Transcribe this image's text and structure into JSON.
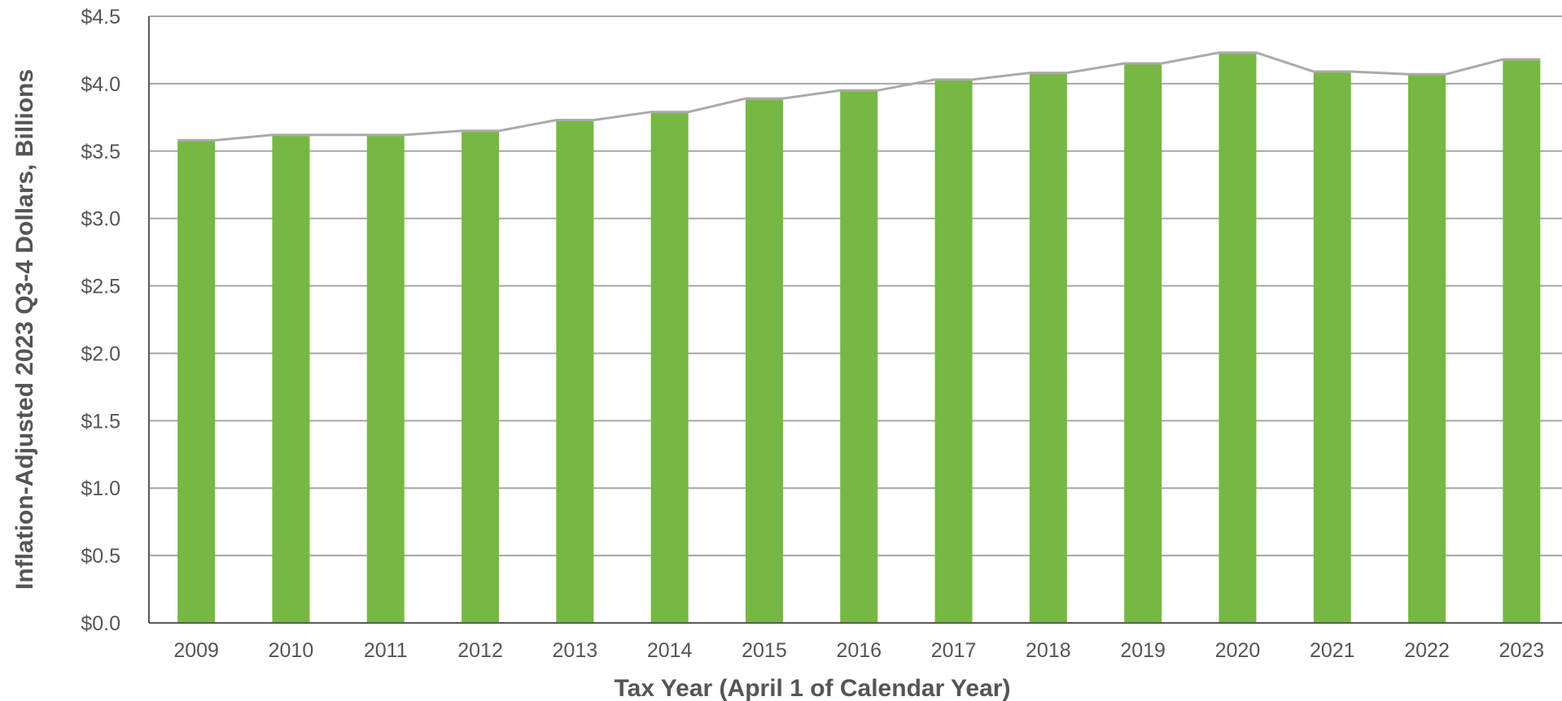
{
  "chart_data": {
    "type": "bar",
    "title": "",
    "xlabel": "Tax Year (April 1 of Calendar Year)",
    "ylabel": "Inflation-Adjusted 2023 Q3-4 Dollars, Billions",
    "ylim": [
      0,
      4.5
    ],
    "y_ticks": [
      0,
      0.5,
      1.0,
      1.5,
      2.0,
      2.5,
      3.0,
      3.5,
      4.0,
      4.5
    ],
    "y_tick_labels": [
      "$0.0",
      "$0.5",
      "$1.0",
      "$1.5",
      "$2.0",
      "$2.5",
      "$3.0",
      "$3.5",
      "$4.0",
      "$4.5"
    ],
    "categories": [
      "2009",
      "2010",
      "2011",
      "2012",
      "2013",
      "2014",
      "2015",
      "2016",
      "2017",
      "2018",
      "2019",
      "2020",
      "2021",
      "2022",
      "2023"
    ],
    "values": [
      3.58,
      3.62,
      3.62,
      3.65,
      3.73,
      3.79,
      3.89,
      3.95,
      4.03,
      4.08,
      4.15,
      4.23,
      4.09,
      4.07,
      4.18
    ],
    "overlay_line": true,
    "grid": true,
    "legend": "none",
    "colors": {
      "bar": "#76b843",
      "line": "#aaaaaa",
      "grid": "#a6a6a6",
      "axis": "#595959",
      "text": "#555555"
    }
  }
}
